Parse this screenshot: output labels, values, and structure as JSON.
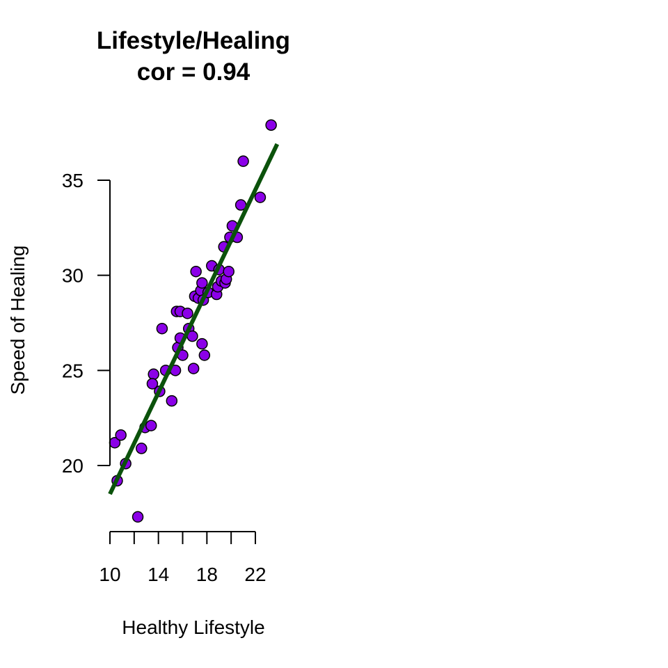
{
  "chart_data": {
    "type": "scatter",
    "title": "Lifestyle/Healing",
    "subtitle": "cor = 0.94",
    "xlabel": "Healthy Lifestyle",
    "ylabel": "Speed of Healing",
    "xlim": [
      10,
      24
    ],
    "ylim": [
      16.5,
      38
    ],
    "x_ticks": [
      10,
      12,
      14,
      16,
      18,
      20,
      22
    ],
    "x_tick_labels": [
      "10",
      "",
      "14",
      "",
      "18",
      "",
      "22"
    ],
    "y_ticks": [
      20,
      25,
      30,
      35
    ],
    "y_tick_labels": [
      "20",
      "25",
      "30",
      "35"
    ],
    "grid": false,
    "point_color": "#8B00E8",
    "point_edge_color": "#000000",
    "line_color": "#0B520B",
    "fit_line": {
      "x": [
        10,
        23.8
      ],
      "y": [
        18.5,
        36.9
      ]
    },
    "series": [
      {
        "x": [
          10.4,
          10.6,
          10.9,
          11.3,
          12.3,
          12.6,
          12.9,
          13.4,
          13.6,
          13.5,
          14.1,
          14.3,
          14.6,
          15.1,
          15.4,
          15.5,
          15.6,
          15.8,
          15.8,
          16.0,
          16.4,
          16.5,
          16.8,
          16.9,
          17.1,
          17.0,
          17.3,
          17.5,
          17.6,
          17.6,
          17.7,
          17.8,
          18.1,
          18.4,
          18.8,
          18.9,
          19.0,
          19.2,
          19.4,
          19.5,
          19.6,
          19.8,
          19.9,
          20.1,
          20.5,
          20.8,
          21.0,
          22.4,
          23.3
        ],
        "y": [
          21.2,
          19.2,
          21.6,
          20.1,
          17.3,
          20.9,
          22.0,
          22.1,
          24.8,
          24.3,
          23.9,
          27.2,
          25.0,
          23.4,
          25.0,
          28.1,
          26.2,
          26.7,
          28.1,
          25.8,
          28.0,
          27.2,
          26.8,
          25.1,
          30.2,
          28.9,
          28.8,
          29.2,
          29.6,
          26.4,
          28.7,
          25.8,
          29.1,
          30.5,
          29.0,
          29.4,
          30.3,
          29.7,
          31.5,
          29.6,
          29.8,
          30.2,
          32.0,
          32.6,
          32.0,
          33.7,
          36.0,
          34.1,
          37.9
        ]
      }
    ]
  }
}
